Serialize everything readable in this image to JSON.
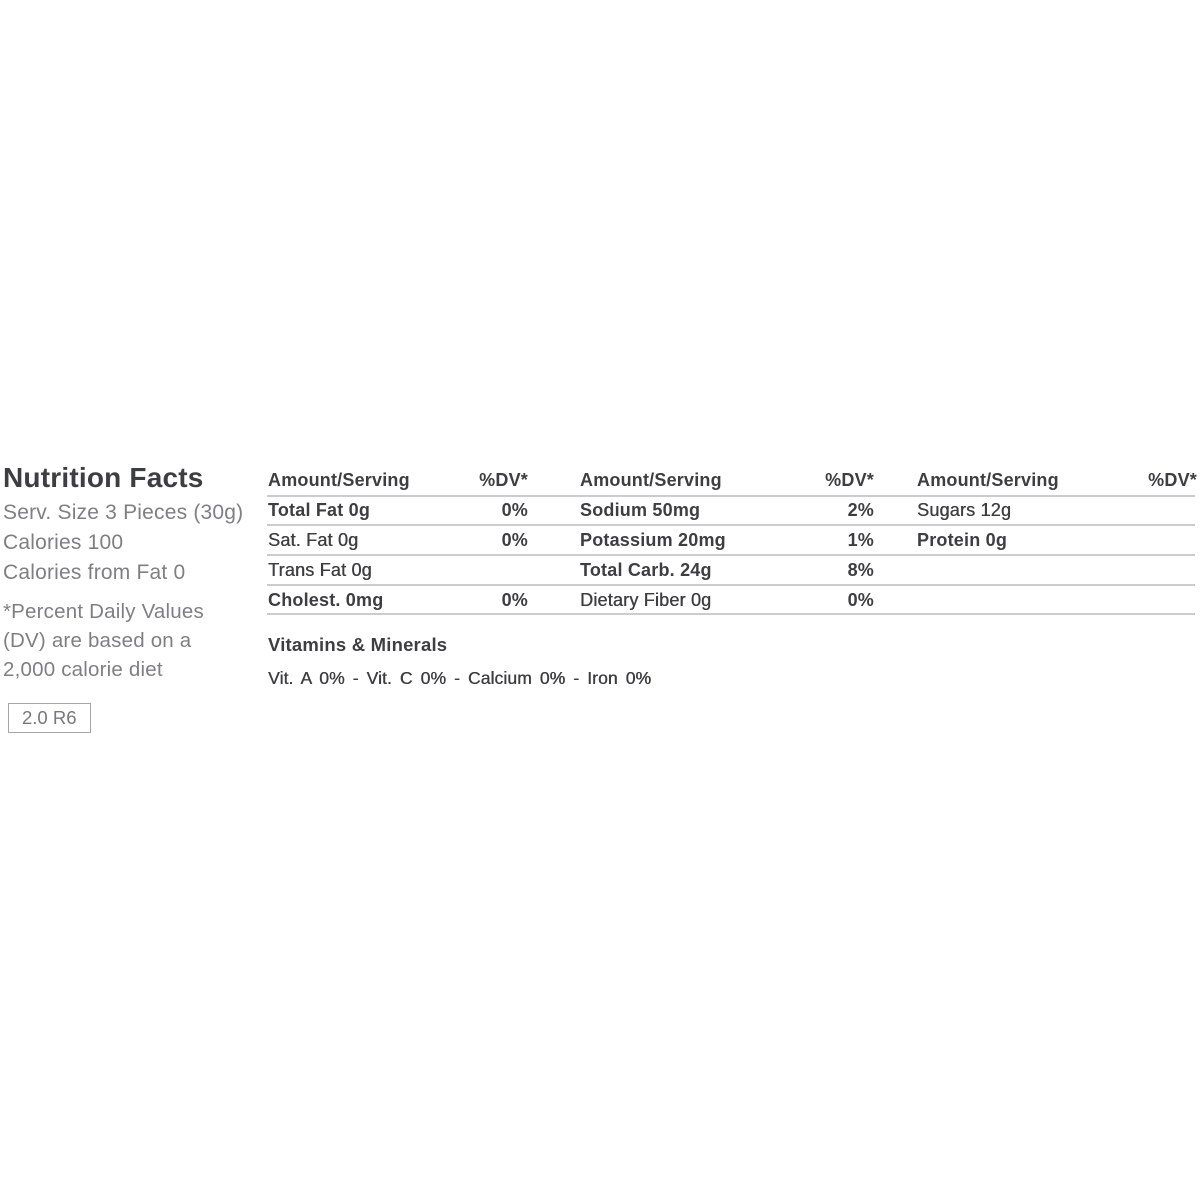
{
  "colors": {
    "text_dark": "#3d3e42",
    "text_gray": "#7e7f84",
    "divider": "#cbccd0",
    "box_border": "#a6a7ab"
  },
  "left_panel": {
    "title": "Nutrition Facts",
    "serving_size": "Serv. Size 3 Pieces (30g)",
    "calories": "Calories 100",
    "calories_from_fat": "Calories from Fat 0",
    "footnote_line1": "*Percent Daily Values",
    "footnote_line2": "(DV) are based on a",
    "footnote_line3": "2,000 calorie diet",
    "version_tag": "2.0 R6"
  },
  "table": {
    "header_amount": "Amount/Serving",
    "header_dv": "%DV*",
    "groups": [
      {
        "rows": [
          {
            "label": "Total Fat 0g",
            "dv": "0%"
          },
          {
            "label": "Sat. Fat 0g",
            "dv": "0%"
          },
          {
            "label": "Trans Fat 0g",
            "dv": ""
          },
          {
            "label": "Cholest. 0mg",
            "dv": "0%"
          }
        ]
      },
      {
        "rows": [
          {
            "label": "Sodium 50mg",
            "dv": "2%"
          },
          {
            "label": "Potassium 20mg",
            "dv": "1%"
          },
          {
            "label": "Total Carb. 24g",
            "dv": "8%"
          },
          {
            "label": "Dietary Fiber 0g",
            "dv": "0%"
          }
        ]
      },
      {
        "rows": [
          {
            "label": "Sugars 12g",
            "dv": ""
          },
          {
            "label": "Protein 0g",
            "dv": ""
          }
        ]
      }
    ]
  },
  "vitamins": {
    "title": "Vitamins & Minerals",
    "values": "Vit. A 0% - Vit. C 0% - Calcium 0% - Iron 0%"
  }
}
